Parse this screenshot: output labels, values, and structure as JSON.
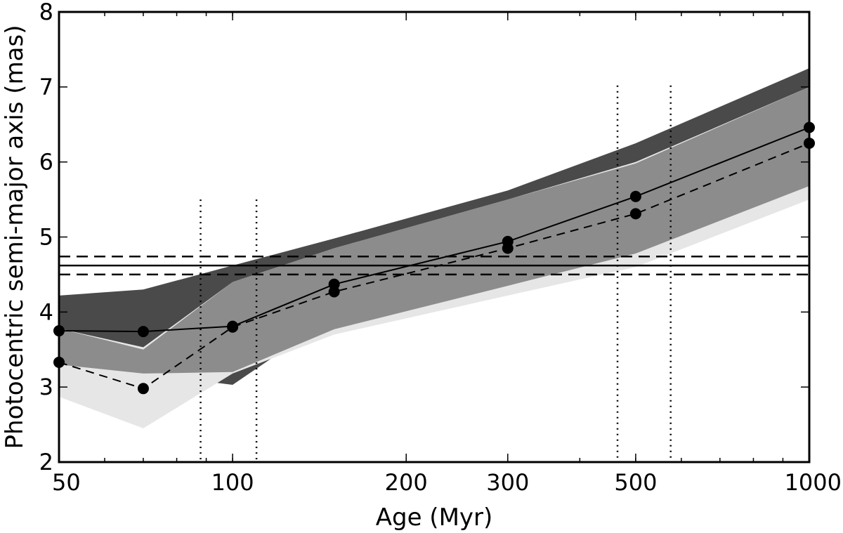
{
  "chart_data": {
    "type": "line",
    "xlabel": "Age (Myr)",
    "ylabel": "Photocentric semi-major axis (mas)",
    "xscale": "log",
    "xlim": [
      50,
      1000
    ],
    "ylim": [
      2,
      8
    ],
    "xticks": [
      50,
      100,
      200,
      300,
      500,
      1000
    ],
    "xtick_labels": [
      "50",
      "100",
      "200",
      "300",
      "500",
      "1000"
    ],
    "yticks": [
      2,
      3,
      4,
      5,
      6,
      7,
      8
    ],
    "ytick_labels": [
      "2",
      "3",
      "4",
      "5",
      "6",
      "7",
      "8"
    ],
    "grid": false,
    "bands": [
      {
        "color": "#4a4a4a",
        "x": [
          50,
          70,
          100,
          150,
          300,
          500,
          1000
        ],
        "upper": [
          4.22,
          4.3,
          4.62,
          4.98,
          5.62,
          6.25,
          7.25
        ],
        "lower": [
          3.3,
          3.18,
          3.03,
          3.95,
          4.6,
          5.03,
          6.0
        ]
      },
      {
        "color": "#e6e6e6",
        "x": [
          50,
          70,
          100,
          150,
          300,
          500,
          1000
        ],
        "upper": [
          3.78,
          3.53,
          4.4,
          4.85,
          5.5,
          6.0,
          7.0
        ],
        "lower": [
          2.87,
          2.45,
          3.18,
          3.7,
          4.22,
          4.6,
          5.5
        ]
      },
      {
        "color": "#8c8c8c",
        "x": [
          50,
          70,
          100,
          150,
          300,
          500,
          1000
        ],
        "upper": [
          3.78,
          3.5,
          4.4,
          4.85,
          5.5,
          5.98,
          7.0
        ],
        "lower": [
          3.3,
          3.18,
          3.2,
          3.77,
          4.35,
          4.78,
          5.68
        ]
      }
    ],
    "series": [
      {
        "style": "solid",
        "x": [
          50,
          70,
          100,
          150,
          300,
          500,
          1000
        ],
        "y": [
          3.75,
          3.74,
          3.81,
          4.37,
          4.94,
          5.54,
          6.46
        ]
      },
      {
        "style": "dashed",
        "x": [
          50,
          70,
          100,
          150,
          300,
          500,
          1000
        ],
        "y": [
          3.33,
          2.98,
          3.8,
          4.27,
          4.85,
          5.31,
          6.25
        ]
      }
    ],
    "hlines": [
      {
        "y": 4.62,
        "style": "solid"
      },
      {
        "y": 4.74,
        "style": "dashed"
      },
      {
        "y": 4.5,
        "style": "dashed"
      }
    ],
    "vlines": [
      {
        "x": 88,
        "ymax": 5.5,
        "style": "dotted"
      },
      {
        "x": 110,
        "ymax": 5.5,
        "style": "dotted"
      },
      {
        "x": 465,
        "ymax": 7.02,
        "style": "dotted"
      },
      {
        "x": 575,
        "ymax": 7.02,
        "style": "dotted"
      }
    ]
  }
}
